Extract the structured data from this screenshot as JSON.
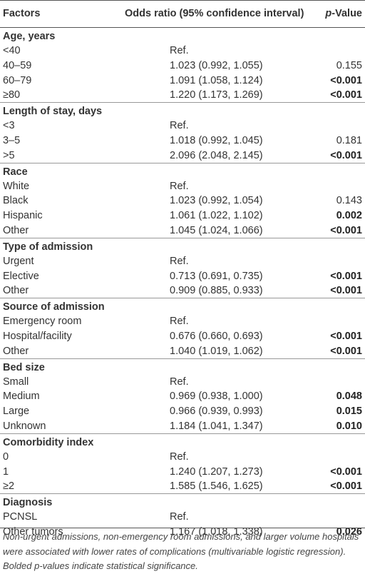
{
  "header": {
    "factors": "Factors",
    "odds": "Odds ratio (95% confidence interval)",
    "p_italic": "p",
    "p_rest": "-Value"
  },
  "groups": [
    {
      "title": "Age, years",
      "rows": [
        {
          "f": "<40",
          "or": "Ref.",
          "p": "",
          "bold": false
        },
        {
          "f": "40–59",
          "or": "1.023 (0.992, 1.055)",
          "p": "0.155",
          "bold": false
        },
        {
          "f": "60–79",
          "or": "1.091 (1.058, 1.124)",
          "p": "<0.001",
          "bold": true
        },
        {
          "f": "≥80",
          "or": "1.220 (1.173, 1.269)",
          "p": "<0.001",
          "bold": true
        }
      ]
    },
    {
      "title": "Length of stay, days",
      "rows": [
        {
          "f": "<3",
          "or": "Ref.",
          "p": "",
          "bold": false
        },
        {
          "f": "3–5",
          "or": "1.018 (0.992, 1.045)",
          "p": "0.181",
          "bold": false
        },
        {
          "f": ">5",
          "or": "2.096 (2.048, 2.145)",
          "p": "<0.001",
          "bold": true
        }
      ]
    },
    {
      "title": "Race",
      "rows": [
        {
          "f": "White",
          "or": "Ref.",
          "p": "",
          "bold": false
        },
        {
          "f": "Black",
          "or": "1.023 (0.992, 1.054)",
          "p": "0.143",
          "bold": false
        },
        {
          "f": "Hispanic",
          "or": "1.061 (1.022, 1.102)",
          "p": "0.002",
          "bold": true
        },
        {
          "f": "Other",
          "or": "1.045 (1.024, 1.066)",
          "p": "<0.001",
          "bold": true
        }
      ]
    },
    {
      "title": "Type of admission",
      "rows": [
        {
          "f": "Urgent",
          "or": "Ref.",
          "p": "",
          "bold": false
        },
        {
          "f": "Elective",
          "or": "0.713 (0.691, 0.735)",
          "p": "<0.001",
          "bold": true
        },
        {
          "f": "Other",
          "or": "0.909 (0.885, 0.933)",
          "p": "<0.001",
          "bold": true
        }
      ]
    },
    {
      "title": "Source of admission",
      "rows": [
        {
          "f": "Emergency room",
          "or": "Ref.",
          "p": "",
          "bold": false
        },
        {
          "f": "Hospital/facility",
          "or": "0.676 (0.660, 0.693)",
          "p": "<0.001",
          "bold": true
        },
        {
          "f": "Other",
          "or": "1.040 (1.019, 1.062)",
          "p": "<0.001",
          "bold": true
        }
      ]
    },
    {
      "title": "Bed size",
      "rows": [
        {
          "f": "Small",
          "or": "Ref.",
          "p": "",
          "bold": false
        },
        {
          "f": "Medium",
          "or": "0.969 (0.938, 1.000)",
          "p": "0.048",
          "bold": true
        },
        {
          "f": "Large",
          "or": "0.966 (0.939, 0.993)",
          "p": "0.015",
          "bold": true
        },
        {
          "f": "Unknown",
          "or": "1.184 (1.041, 1.347)",
          "p": "0.010",
          "bold": true
        }
      ]
    },
    {
      "title": "Comorbidity index",
      "rows": [
        {
          "f": "0",
          "or": "Ref.",
          "p": "",
          "bold": false
        },
        {
          "f": "1",
          "or": "1.240 (1.207, 1.273)",
          "p": "<0.001",
          "bold": true
        },
        {
          "f": "≥2",
          "or": "1.585 (1.546, 1.625)",
          "p": "<0.001",
          "bold": true
        }
      ]
    },
    {
      "title": "Diagnosis",
      "rows": [
        {
          "f": "PCNSL",
          "or": "Ref.",
          "p": "",
          "bold": false
        },
        {
          "f": "Other tumors",
          "or": "1.167 (1.018, 1.338)",
          "p": "0.026",
          "bold": true
        }
      ]
    }
  ],
  "footnote": {
    "line1": "Non-urgent admissions, non-emergency room admissions, and larger volume hospitals were associated with lower rates of complications (multivariable logistic regression).",
    "line2_italic_prefix": "Bolded ",
    "line2_p": "p",
    "line2_rest": "-values indicate statistical significance."
  }
}
